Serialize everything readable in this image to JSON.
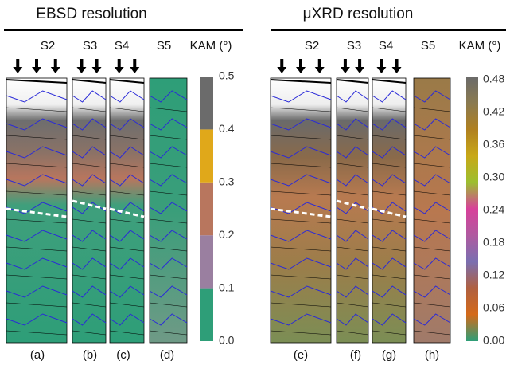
{
  "panels": [
    {
      "title": "EBSD resolution",
      "columns": [
        "S2",
        "S3",
        "S4",
        "S5"
      ],
      "colorbar_label": "KAM (°)",
      "colorbar_ticks": [
        "0.0",
        "0.1",
        "0.2",
        "0.3",
        "0.4",
        "0.5"
      ],
      "letters": [
        "(a)",
        "(b)",
        "(c)",
        "(d)"
      ]
    },
    {
      "title": "μXRD resolution",
      "columns": [
        "S2",
        "S3",
        "S4",
        "S5"
      ],
      "colorbar_label": "KAM (°)",
      "colorbar_ticks": [
        "0.00",
        "0.06",
        "0.12",
        "0.18",
        "0.24",
        "0.30",
        "0.36",
        "0.42",
        "0.48"
      ],
      "letters": [
        "(e)",
        "(f)",
        "(g)",
        "(h)"
      ]
    }
  ]
}
